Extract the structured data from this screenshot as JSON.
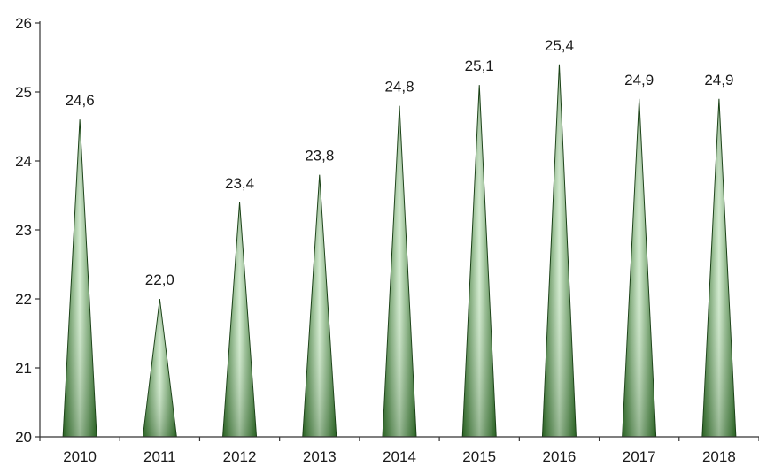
{
  "chart_data": {
    "type": "bar",
    "categories": [
      "2010",
      "2011",
      "2012",
      "2013",
      "2014",
      "2015",
      "2016",
      "2017",
      "2018"
    ],
    "values": [
      24.6,
      22.0,
      23.4,
      23.8,
      24.8,
      25.1,
      25.4,
      24.9,
      24.9
    ],
    "value_labels": [
      "24,6",
      "22,0",
      "23,4",
      "23,8",
      "24,8",
      "25,1",
      "25,4",
      "24,9",
      "24,9"
    ],
    "y_ticks": [
      "20",
      "21",
      "22",
      "23",
      "24",
      "25",
      "26"
    ],
    "ylim": [
      20,
      26
    ],
    "grid": false,
    "bar_shape": "cone",
    "colors": {
      "dark": "#2f6b27",
      "light": "#d3ecd0",
      "outline": "#163d12",
      "axis": "#333333"
    }
  }
}
